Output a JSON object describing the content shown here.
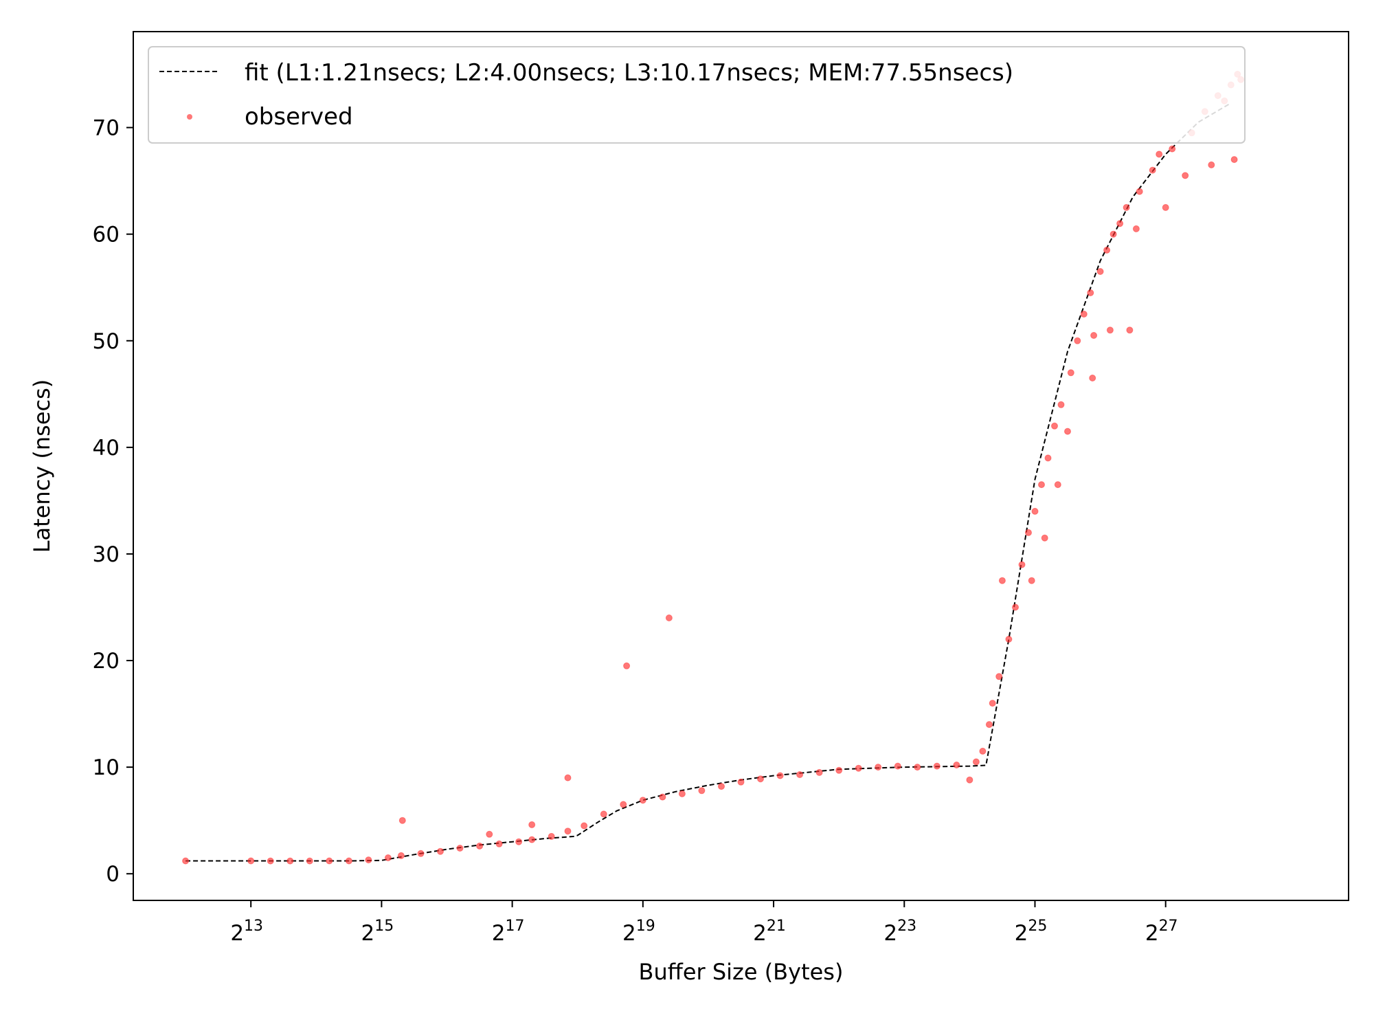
{
  "chart_data": {
    "type": "scatter",
    "title": "",
    "xlabel": "Buffer Size (Bytes)",
    "ylabel": "Latency (nsecs)",
    "x_scale": "log2",
    "x_range_exponent": [
      11.2,
      29.8
    ],
    "ylim": [
      -2.5,
      79
    ],
    "x_ticks": [
      {
        "exp": 13,
        "base": "2",
        "sup": "13"
      },
      {
        "exp": 15,
        "base": "2",
        "sup": "15"
      },
      {
        "exp": 17,
        "base": "2",
        "sup": "17"
      },
      {
        "exp": 19,
        "base": "2",
        "sup": "19"
      },
      {
        "exp": 21,
        "base": "2",
        "sup": "21"
      },
      {
        "exp": 23,
        "base": "2",
        "sup": "23"
      },
      {
        "exp": 25,
        "base": "2",
        "sup": "25"
      },
      {
        "exp": 27,
        "base": "2",
        "sup": "27"
      }
    ],
    "y_ticks": [
      {
        "value": 0,
        "label": "0"
      },
      {
        "value": 10,
        "label": "10"
      },
      {
        "value": 20,
        "label": "20"
      },
      {
        "value": 30,
        "label": "30"
      },
      {
        "value": 40,
        "label": "40"
      },
      {
        "value": 50,
        "label": "50"
      },
      {
        "value": 60,
        "label": "60"
      },
      {
        "value": 70,
        "label": "70"
      }
    ],
    "legend_position": "top-left",
    "grid": false,
    "series": [
      {
        "name": "fit (L1:1.21nsecs; L2:4.00nsecs; L3:10.17nsecs; MEM:77.55nsecs)",
        "kind": "line",
        "style": "dashed",
        "color": "#000000",
        "points": [
          [
            12,
            1.21
          ],
          [
            14.5,
            1.21
          ],
          [
            15.0,
            1.25
          ],
          [
            15.5,
            1.8
          ],
          [
            16.0,
            2.3
          ],
          [
            16.5,
            2.7
          ],
          [
            17.0,
            3.0
          ],
          [
            17.5,
            3.3
          ],
          [
            17.95,
            3.5
          ],
          [
            18.0,
            3.6
          ],
          [
            18.3,
            4.8
          ],
          [
            18.6,
            5.9
          ],
          [
            19.0,
            6.9
          ],
          [
            19.5,
            7.7
          ],
          [
            20.0,
            8.3
          ],
          [
            20.5,
            8.8
          ],
          [
            21.0,
            9.2
          ],
          [
            21.5,
            9.5
          ],
          [
            22.0,
            9.8
          ],
          [
            23.0,
            10.0
          ],
          [
            24.0,
            10.1
          ],
          [
            24.25,
            10.17
          ],
          [
            24.6,
            22.0
          ],
          [
            25.0,
            37.0
          ],
          [
            25.5,
            49.0
          ],
          [
            26.0,
            57.5
          ],
          [
            26.5,
            63.5
          ],
          [
            27.0,
            67.5
          ],
          [
            27.5,
            70.5
          ],
          [
            28.0,
            72.3
          ]
        ]
      },
      {
        "name": "observed",
        "kind": "scatter",
        "color": "#ff3030",
        "points": [
          [
            12,
            1.21
          ],
          [
            13,
            1.21
          ],
          [
            13.3,
            1.2
          ],
          [
            13.6,
            1.2
          ],
          [
            13.9,
            1.2
          ],
          [
            14.2,
            1.21
          ],
          [
            14.5,
            1.21
          ],
          [
            14.8,
            1.3
          ],
          [
            15.1,
            1.5
          ],
          [
            15.3,
            1.7
          ],
          [
            15.32,
            5.0
          ],
          [
            15.6,
            1.9
          ],
          [
            15.9,
            2.1
          ],
          [
            16.2,
            2.4
          ],
          [
            16.5,
            2.6
          ],
          [
            16.65,
            3.7
          ],
          [
            16.8,
            2.8
          ],
          [
            17.1,
            3.0
          ],
          [
            17.3,
            3.2
          ],
          [
            17.3,
            4.6
          ],
          [
            17.6,
            3.5
          ],
          [
            17.85,
            4.0
          ],
          [
            17.85,
            9.0
          ],
          [
            18.1,
            4.5
          ],
          [
            18.4,
            5.6
          ],
          [
            18.7,
            6.5
          ],
          [
            18.75,
            19.5
          ],
          [
            19.0,
            6.9
          ],
          [
            19.3,
            7.2
          ],
          [
            19.4,
            24.0
          ],
          [
            19.6,
            7.5
          ],
          [
            19.9,
            7.8
          ],
          [
            20.2,
            8.2
          ],
          [
            20.5,
            8.6
          ],
          [
            20.8,
            8.9
          ],
          [
            21.1,
            9.2
          ],
          [
            21.4,
            9.3
          ],
          [
            21.7,
            9.5
          ],
          [
            22.0,
            9.7
          ],
          [
            22.3,
            9.9
          ],
          [
            22.6,
            10.0
          ],
          [
            22.9,
            10.1
          ],
          [
            23.2,
            10.0
          ],
          [
            23.5,
            10.1
          ],
          [
            23.8,
            10.2
          ],
          [
            24.0,
            8.8
          ],
          [
            24.1,
            10.5
          ],
          [
            24.2,
            11.5
          ],
          [
            24.3,
            14.0
          ],
          [
            24.35,
            16.0
          ],
          [
            24.45,
            18.5
          ],
          [
            24.5,
            27.5
          ],
          [
            24.6,
            22.0
          ],
          [
            24.7,
            25.0
          ],
          [
            24.8,
            29.0
          ],
          [
            24.9,
            32.0
          ],
          [
            24.95,
            27.5
          ],
          [
            25.0,
            34.0
          ],
          [
            25.1,
            36.5
          ],
          [
            25.15,
            31.5
          ],
          [
            25.2,
            39.0
          ],
          [
            25.3,
            42.0
          ],
          [
            25.35,
            36.5
          ],
          [
            25.4,
            44.0
          ],
          [
            25.5,
            41.5
          ],
          [
            25.55,
            47.0
          ],
          [
            25.65,
            50.0
          ],
          [
            25.75,
            52.5
          ],
          [
            25.85,
            54.5
          ],
          [
            25.88,
            46.5
          ],
          [
            25.9,
            50.5
          ],
          [
            26.0,
            56.5
          ],
          [
            26.1,
            58.5
          ],
          [
            26.15,
            51.0
          ],
          [
            26.2,
            60.0
          ],
          [
            26.3,
            61.0
          ],
          [
            26.4,
            62.5
          ],
          [
            26.45,
            51.0
          ],
          [
            26.55,
            60.5
          ],
          [
            26.6,
            64.0
          ],
          [
            26.8,
            66.0
          ],
          [
            26.9,
            67.5
          ],
          [
            27.0,
            62.5
          ],
          [
            27.1,
            68.0
          ],
          [
            27.3,
            65.5
          ],
          [
            27.4,
            69.5
          ],
          [
            27.6,
            71.5
          ],
          [
            27.7,
            66.5
          ],
          [
            27.8,
            73.0
          ],
          [
            27.9,
            72.5
          ],
          [
            28.0,
            74.0
          ],
          [
            28.05,
            67.0
          ],
          [
            28.1,
            75.0
          ],
          [
            28.15,
            74.5
          ]
        ]
      }
    ]
  }
}
